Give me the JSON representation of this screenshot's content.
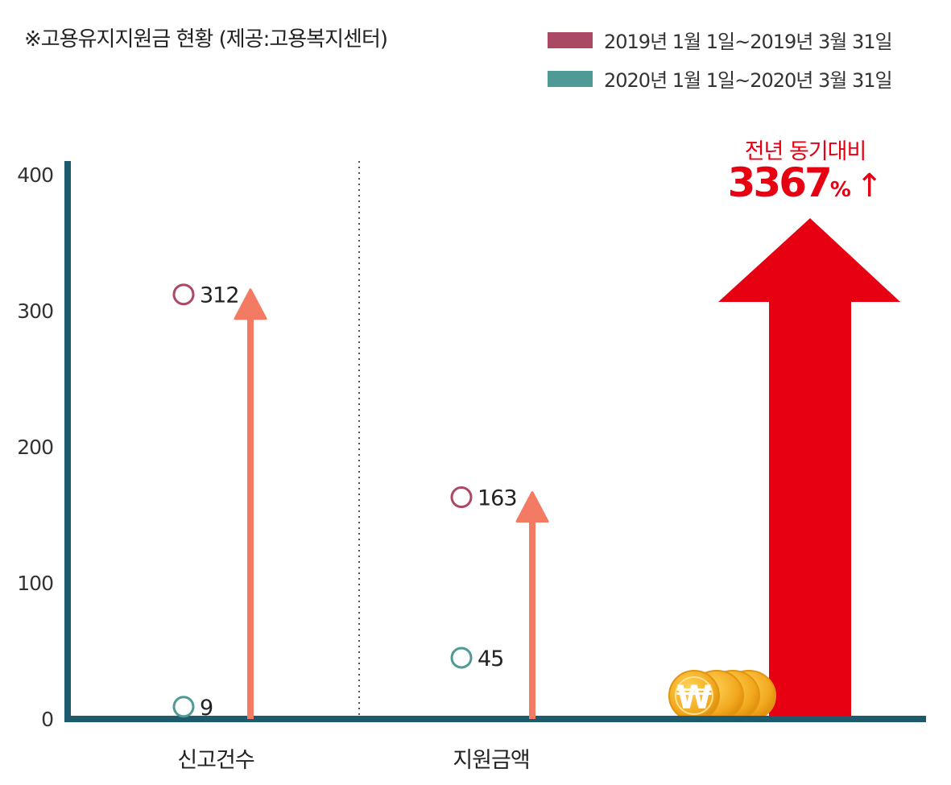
{
  "title": "※고용유지지원금 현황 (제공:고용복지센터)",
  "legend": [
    {
      "label": "2019년 1월 1일~2019년 3월 31일",
      "color": "#ab4864"
    },
    {
      "label": "2020년 1월 1일~2020년 3월 31일",
      "color": "#4f9a94"
    }
  ],
  "annotation": {
    "subtitle": "전년 동기대비",
    "value": "3367",
    "unit": "%",
    "arrow": "↑"
  },
  "icons": {
    "coin": "won-coin-icon",
    "big_arrow": "big-red-up-arrow-icon"
  },
  "colors": {
    "axis": "#1d5a6d",
    "arrow": "#f37a63",
    "highlight": "#e60012",
    "coin": "#f2a81e",
    "divider": "#555555"
  },
  "chart_data": {
    "type": "scatter",
    "categories": [
      "신고건수",
      "지원금액"
    ],
    "series": [
      {
        "name": "2019년 1월 1일~2019년 3월 31일",
        "values": [
          312,
          163
        ],
        "color": "#ab4864"
      },
      {
        "name": "2020년 1월 1일~2020년 3월 31일",
        "values": [
          9,
          45
        ],
        "color": "#4f9a94"
      }
    ],
    "data_labels": [
      [
        "312",
        "163"
      ],
      [
        "9",
        "45"
      ]
    ],
    "yticks": [
      0,
      100,
      200,
      300,
      400
    ],
    "ylim": [
      0,
      400
    ],
    "grid": false,
    "legend_position": "top-right"
  }
}
